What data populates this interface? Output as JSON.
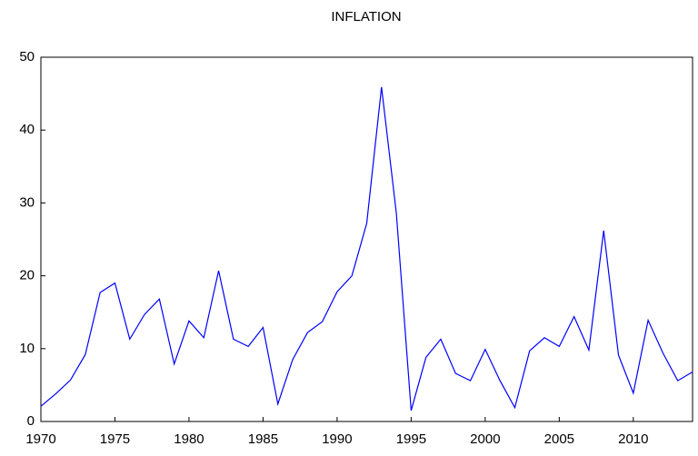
{
  "chart_data": {
    "type": "line",
    "title": "INFLATION",
    "x": [
      1970,
      1971,
      1972,
      1973,
      1974,
      1975,
      1976,
      1977,
      1978,
      1979,
      1980,
      1981,
      1982,
      1983,
      1984,
      1985,
      1986,
      1987,
      1988,
      1989,
      1990,
      1991,
      1992,
      1993,
      1994,
      1995,
      1996,
      1997,
      1998,
      1999,
      2000,
      2001,
      2002,
      2003,
      2004,
      2005,
      2006,
      2007,
      2008,
      2009,
      2010,
      2011,
      2012,
      2013,
      2014
    ],
    "series": [
      {
        "name": "INFLATION",
        "color": "#0000ff",
        "values": [
          2.1,
          3.8,
          5.7,
          9.2,
          17.7,
          19.0,
          11.3,
          14.7,
          16.8,
          7.9,
          13.8,
          11.5,
          20.7,
          11.3,
          10.3,
          12.9,
          2.4,
          8.5,
          12.2,
          13.7,
          17.8,
          20.0,
          27.2,
          45.9,
          28.6,
          1.5,
          8.8,
          11.3,
          6.6,
          5.6,
          9.9,
          5.6,
          1.9,
          9.7,
          11.5,
          10.3,
          14.4,
          9.8,
          26.2,
          9.1,
          3.9,
          13.9,
          9.4,
          5.6,
          6.8
        ]
      }
    ],
    "xlim": [
      1970,
      2014
    ],
    "xticks": [
      1970,
      1975,
      1980,
      1985,
      1990,
      1995,
      2000,
      2005,
      2010
    ],
    "ylim": [
      0,
      50
    ],
    "yticks": [
      0,
      10,
      20,
      30,
      40,
      50
    ]
  }
}
